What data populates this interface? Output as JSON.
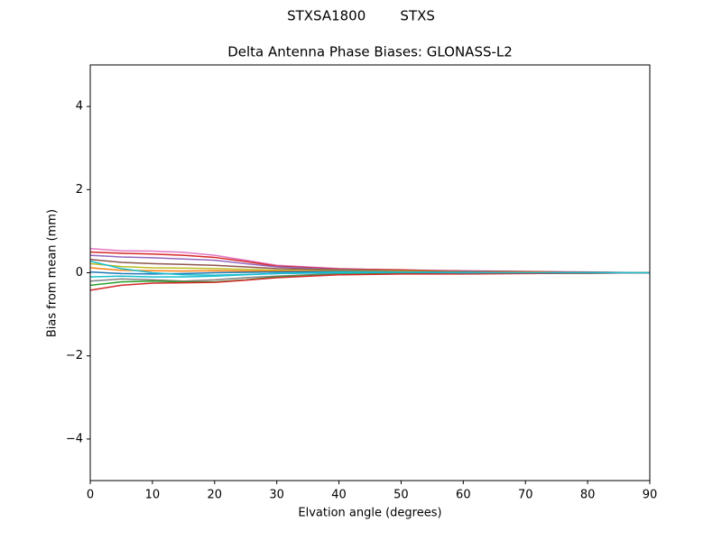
{
  "chart_data": {
    "type": "line",
    "suptitle": "STXSA1800        STXS",
    "title": "Delta Antenna Phase Biases: GLONASS-L2",
    "x_label": "Elvation angle (degrees)",
    "y_label": "Bias from mean (mm)",
    "x": [
      0,
      5,
      10,
      15,
      20,
      25,
      30,
      40,
      50,
      60,
      70,
      80,
      90
    ],
    "xlim": [
      0,
      90
    ],
    "xticks": [
      0,
      10,
      20,
      30,
      40,
      50,
      60,
      70,
      80,
      90
    ],
    "ylim": [
      -5,
      5
    ],
    "yticks": [
      {
        "value": -4,
        "label": "−4"
      },
      {
        "value": -2,
        "label": "−2"
      },
      0,
      2,
      4
    ],
    "grid": false,
    "series": [
      {
        "color": "#e377c2",
        "values": [
          0.58,
          0.53,
          0.52,
          0.49,
          0.42,
          0.3,
          0.18,
          0.1,
          0.06,
          0.05,
          0.03,
          0.02,
          0
        ]
      },
      {
        "color": "#d62728",
        "values": [
          0.5,
          0.47,
          0.45,
          0.42,
          0.37,
          0.27,
          0.16,
          0.09,
          0.07,
          0.04,
          0.03,
          0.01,
          0
        ]
      },
      {
        "color": "#9467bd",
        "values": [
          0.42,
          0.38,
          0.36,
          0.33,
          0.3,
          0.22,
          0.14,
          0.08,
          0.05,
          0.04,
          0.02,
          0.01,
          0
        ]
      },
      {
        "color": "#8c564b",
        "values": [
          0.32,
          0.25,
          0.22,
          0.2,
          0.18,
          0.14,
          0.1,
          0.07,
          0.05,
          0.03,
          0.02,
          0.01,
          0
        ]
      },
      {
        "color": "#bcbd22",
        "values": [
          0.22,
          0.15,
          0.12,
          0.11,
          0.1,
          0.08,
          0.06,
          0.05,
          0.04,
          0.02,
          0.01,
          0,
          0
        ]
      },
      {
        "color": "#ff7f0e",
        "values": [
          0.12,
          0.06,
          0.05,
          0.04,
          0.05,
          0.04,
          0.04,
          0.04,
          0.03,
          0.02,
          0.01,
          0,
          0
        ]
      },
      {
        "color": "#1f77b4",
        "values": [
          0.02,
          -0.02,
          -0.03,
          -0.02,
          0,
          0.01,
          0.02,
          0.03,
          0.02,
          0.01,
          0,
          0,
          0
        ]
      },
      {
        "color": "#17becf",
        "values": [
          -0.1,
          -0.08,
          -0.1,
          -0.1,
          -0.08,
          -0.05,
          -0.02,
          0.02,
          0.01,
          0,
          -0.01,
          0,
          0
        ]
      },
      {
        "color": "#7f7f7f",
        "values": [
          -0.2,
          -0.15,
          -0.17,
          -0.2,
          -0.17,
          -0.12,
          -0.08,
          -0.02,
          0,
          -0.01,
          -0.01,
          -0.01,
          0
        ]
      },
      {
        "color": "#2ca02c",
        "values": [
          -0.3,
          -0.22,
          -0.2,
          -0.22,
          -0.22,
          -0.17,
          -0.1,
          -0.04,
          -0.02,
          -0.02,
          -0.01,
          -0.01,
          0
        ]
      },
      {
        "color": "#d62728",
        "values": [
          -0.42,
          -0.3,
          -0.25,
          -0.24,
          -0.23,
          -0.18,
          -0.12,
          -0.05,
          -0.03,
          -0.03,
          -0.02,
          -0.01,
          0
        ]
      },
      {
        "color": "#17becf",
        "values": [
          0.28,
          0.1,
          0.0,
          -0.05,
          -0.06,
          -0.04,
          -0.02,
          0.0,
          0.01,
          0,
          0,
          0,
          0
        ]
      }
    ]
  }
}
